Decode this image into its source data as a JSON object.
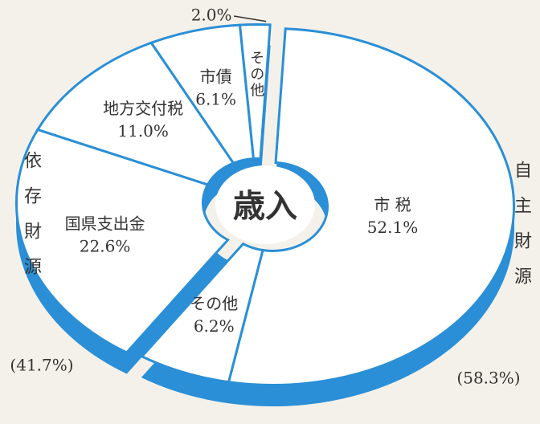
{
  "chart_data": {
    "type": "pie",
    "title": "歳入",
    "categories": [
      "市 税",
      "その他",
      "国県支出金",
      "地方交付税",
      "市債",
      "その他"
    ],
    "values": [
      52.1,
      6.2,
      22.6,
      11.0,
      6.1,
      2.0
    ],
    "value_labels": [
      "52.1%",
      "6.2%",
      "22.6%",
      "11.0%",
      "6.1%",
      "2.0%"
    ],
    "groups": [
      {
        "name": "自主財源",
        "value": 58.3,
        "value_label": "(58.3%)"
      },
      {
        "name": "依存財源",
        "value": 41.7,
        "value_label": "(41.7%)"
      }
    ],
    "color": "#2a8fd6"
  }
}
